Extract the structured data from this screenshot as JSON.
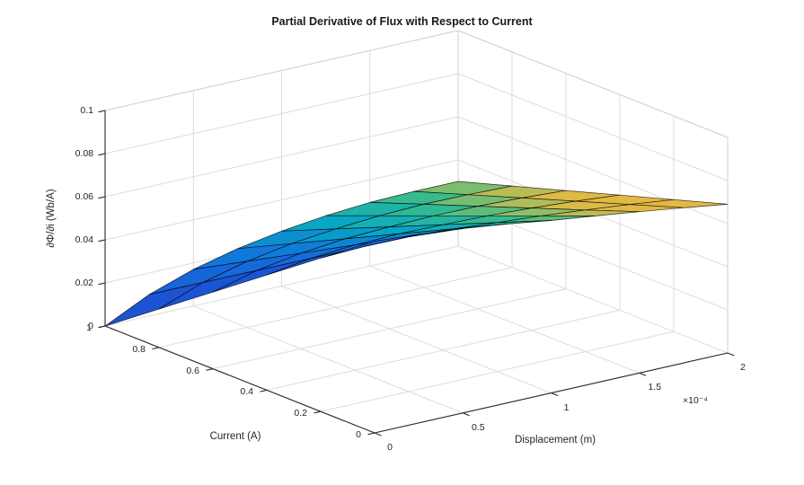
{
  "chart_data": {
    "type": "surface",
    "title": "Partial Derivative of Flux with Respect to Current",
    "xlabel": "Displacement (m)",
    "ylabel": "Current (A)",
    "zlabel": "∂Φ/∂i  (Wb/A)",
    "x_multiplier": "×10⁻⁴",
    "xlim": [
      0,
      0.0002
    ],
    "ylim": [
      0,
      1
    ],
    "zlim": [
      0,
      0.1
    ],
    "grid": true,
    "colormap": "parula",
    "x_tick_values": [
      0,
      5e-05,
      0.0001,
      0.00015,
      0.0002
    ],
    "x_tick_labels": [
      "0",
      "0.5",
      "1",
      "1.5",
      "2"
    ],
    "y_tick_values": [
      1,
      0.8,
      0.6,
      0.4,
      0.2,
      0
    ],
    "y_tick_labels": [
      "1",
      "0.8",
      "0.6",
      "0.4",
      "0.2",
      "0"
    ],
    "z_tick_values": [
      0,
      0.02,
      0.04,
      0.06,
      0.08,
      0.1
    ],
    "z_tick_labels": [
      "0",
      "0.02",
      "0.04",
      "0.06",
      "0.08",
      "0.1"
    ],
    "displacement_values": [
      0,
      2.5e-05,
      5e-05,
      7.5e-05,
      0.0001,
      0.000125,
      0.00015,
      0.000175,
      0.0002
    ],
    "current_values": [
      0,
      0.2,
      0.4,
      0.6,
      0.8,
      1
    ],
    "z_grid": [
      [
        0.089,
        0.0875,
        0.0855,
        0.083,
        0.08,
        0.0775,
        0.0748,
        0.072,
        0.069
      ],
      [
        0.0712,
        0.072,
        0.0718,
        0.0708,
        0.0691,
        0.0676,
        0.0657,
        0.0636,
        0.0612
      ],
      [
        0.0534,
        0.0565,
        0.0581,
        0.0586,
        0.0582,
        0.0577,
        0.0567,
        0.0552,
        0.0534
      ],
      [
        0.0356,
        0.041,
        0.0444,
        0.0464,
        0.0473,
        0.0478,
        0.0476,
        0.0468,
        0.0456
      ],
      [
        0.0178,
        0.0255,
        0.0307,
        0.0342,
        0.0364,
        0.0379,
        0.0386,
        0.0384,
        0.0378
      ],
      [
        0.0,
        0.01,
        0.017,
        0.022,
        0.0255,
        0.028,
        0.0295,
        0.03,
        0.03
      ]
    ],
    "colors": {
      "axis": "#262626",
      "grid_line": "#dcdcdc",
      "frame_line": "#d2d2d2",
      "mesh_edge": "#000000",
      "background": "#ffffff",
      "parula_low": "#352a87",
      "parula_high": "#f0b53d"
    }
  }
}
